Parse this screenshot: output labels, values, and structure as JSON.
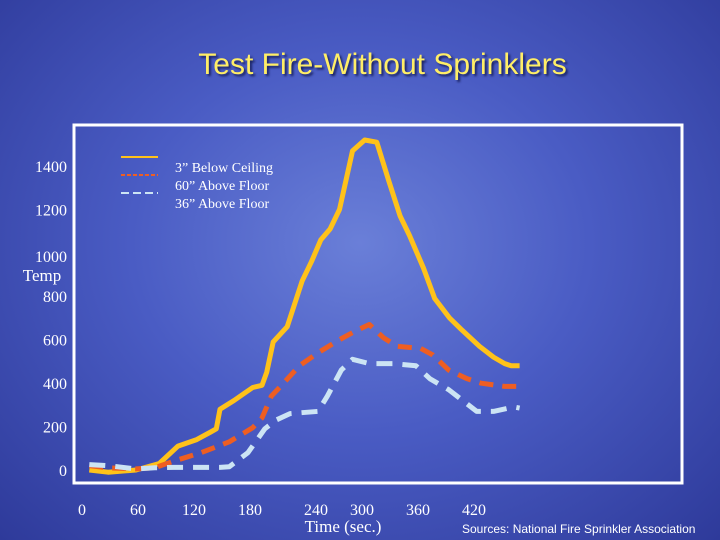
{
  "chart_data": {
    "type": "line",
    "title": "Test Fire-Without Sprinklers",
    "xlabel": "Time (sec.)",
    "ylabel": "Temp",
    "xticks": [
      0,
      60,
      120,
      180,
      240,
      300,
      360,
      420
    ],
    "yticks": [
      0,
      200,
      400,
      600,
      800,
      1000,
      1200,
      1400
    ],
    "xlim": [
      0,
      470
    ],
    "ylim": [
      0,
      1530
    ],
    "grid": false,
    "legend_position": "top-left",
    "source": "Sources: National Fire Sprinkler Association",
    "series": [
      {
        "name": "3” Below Ceiling",
        "color": "#ffc21a",
        "dash": "solid",
        "points": [
          [
            10,
            0
          ],
          [
            30,
            -10
          ],
          [
            60,
            0
          ],
          [
            85,
            30
          ],
          [
            105,
            110
          ],
          [
            115,
            125
          ],
          [
            125,
            140
          ],
          [
            140,
            175
          ],
          [
            146,
            190
          ],
          [
            150,
            280
          ],
          [
            165,
            320
          ],
          [
            175,
            350
          ],
          [
            185,
            380
          ],
          [
            195,
            390
          ],
          [
            200,
            450
          ],
          [
            207,
            590
          ],
          [
            222,
            660
          ],
          [
            238,
            870
          ],
          [
            248,
            960
          ],
          [
            258,
            1060
          ],
          [
            268,
            1110
          ],
          [
            278,
            1200
          ],
          [
            292,
            1470
          ],
          [
            305,
            1520
          ],
          [
            318,
            1510
          ],
          [
            331,
            1330
          ],
          [
            343,
            1170
          ],
          [
            353,
            1080
          ],
          [
            368,
            930
          ],
          [
            380,
            790
          ],
          [
            396,
            700
          ],
          [
            408,
            650
          ],
          [
            428,
            570
          ],
          [
            443,
            520
          ],
          [
            455,
            490
          ],
          [
            462,
            480
          ],
          [
            471,
            480
          ]
        ]
      },
      {
        "name": "60” Above Floor",
        "color": "#ee5e22",
        "dash": "dashed",
        "points": [
          [
            10,
            20
          ],
          [
            30,
            10
          ],
          [
            60,
            5
          ],
          [
            80,
            10
          ],
          [
            100,
            40
          ],
          [
            130,
            80
          ],
          [
            160,
            130
          ],
          [
            185,
            195
          ],
          [
            195,
            240
          ],
          [
            205,
            340
          ],
          [
            218,
            400
          ],
          [
            235,
            480
          ],
          [
            255,
            540
          ],
          [
            278,
            600
          ],
          [
            295,
            640
          ],
          [
            310,
            670
          ],
          [
            325,
            610
          ],
          [
            340,
            570
          ],
          [
            365,
            560
          ],
          [
            378,
            530
          ],
          [
            395,
            460
          ],
          [
            415,
            420
          ],
          [
            430,
            400
          ],
          [
            455,
            385
          ],
          [
            471,
            385
          ]
        ]
      },
      {
        "name": "36” Above Floor",
        "color": "#cce4f4",
        "dash": "dashed",
        "points": [
          [
            10,
            25
          ],
          [
            30,
            20
          ],
          [
            60,
            5
          ],
          [
            80,
            10
          ],
          [
            100,
            12
          ],
          [
            125,
            12
          ],
          [
            150,
            12
          ],
          [
            160,
            15
          ],
          [
            180,
            80
          ],
          [
            198,
            190
          ],
          [
            210,
            230
          ],
          [
            225,
            260
          ],
          [
            255,
            270
          ],
          [
            265,
            340
          ],
          [
            280,
            460
          ],
          [
            292,
            510
          ],
          [
            310,
            490
          ],
          [
            335,
            490
          ],
          [
            360,
            480
          ],
          [
            375,
            420
          ],
          [
            395,
            370
          ],
          [
            410,
            320
          ],
          [
            425,
            270
          ],
          [
            443,
            270
          ],
          [
            465,
            290
          ],
          [
            471,
            285
          ]
        ]
      }
    ]
  }
}
